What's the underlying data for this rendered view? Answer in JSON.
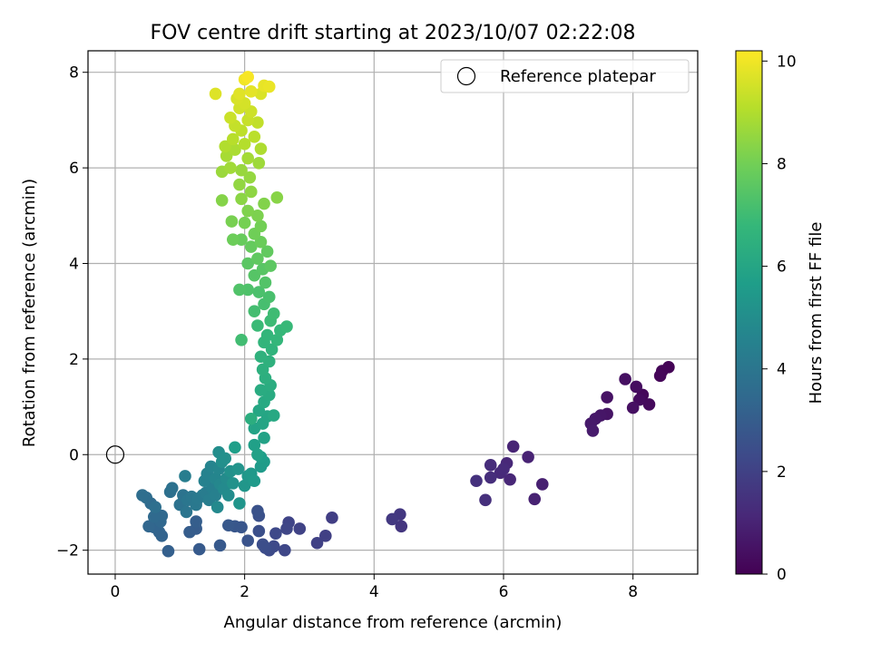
{
  "chart_data": {
    "type": "scatter",
    "title": "FOV centre drift starting at 2023/10/07 02:22:08",
    "xlabel": "Angular distance from reference (arcmin)",
    "ylabel": "Rotation from reference (arcmin)",
    "xlim": [
      -0.42,
      9.0
    ],
    "ylim": [
      -2.5,
      8.45
    ],
    "xticks": [
      0,
      2,
      4,
      6,
      8
    ],
    "yticks": [
      -2,
      0,
      2,
      4,
      6,
      8
    ],
    "xtick_labels": [
      "0",
      "2",
      "4",
      "6",
      "8"
    ],
    "ytick_labels": [
      "−2",
      "0",
      "2",
      "4",
      "6",
      "8"
    ],
    "grid": true,
    "legend": {
      "label": "Reference platepar",
      "location": "upper-right"
    },
    "reference_point": {
      "x": 0,
      "y": 0
    },
    "colorbar": {
      "label": "Hours from first FF file",
      "colormap": "viridis",
      "range": [
        0,
        10.2
      ],
      "ticks": [
        0,
        2,
        4,
        6,
        8,
        10
      ],
      "tick_labels": [
        "0",
        "2",
        "4",
        "6",
        "8",
        "10"
      ]
    },
    "colormap_stops": [
      "#440154",
      "#482878",
      "#3e4989",
      "#31688e",
      "#26828e",
      "#1f9e89",
      "#35b779",
      "#6ece58",
      "#b5de2b",
      "#fde725"
    ],
    "points": [
      {
        "x": 8.55,
        "y": 1.83,
        "h": 0.05
      },
      {
        "x": 8.45,
        "y": 1.75,
        "h": 0.1
      },
      {
        "x": 8.42,
        "y": 1.65,
        "h": 0.15
      },
      {
        "x": 8.15,
        "y": 1.25,
        "h": 0.2
      },
      {
        "x": 8.25,
        "y": 1.05,
        "h": 0.25
      },
      {
        "x": 8.1,
        "y": 1.15,
        "h": 0.3
      },
      {
        "x": 8.05,
        "y": 1.42,
        "h": 0.35
      },
      {
        "x": 7.88,
        "y": 1.58,
        "h": 0.4
      },
      {
        "x": 8.0,
        "y": 0.98,
        "h": 0.45
      },
      {
        "x": 7.6,
        "y": 1.2,
        "h": 0.5
      },
      {
        "x": 7.6,
        "y": 0.85,
        "h": 0.55
      },
      {
        "x": 7.5,
        "y": 0.82,
        "h": 0.6
      },
      {
        "x": 7.42,
        "y": 0.75,
        "h": 0.65
      },
      {
        "x": 7.35,
        "y": 0.65,
        "h": 0.7
      },
      {
        "x": 7.38,
        "y": 0.5,
        "h": 0.75
      },
      {
        "x": 6.6,
        "y": -0.62,
        "h": 0.9
      },
      {
        "x": 6.48,
        "y": -0.93,
        "h": 0.95
      },
      {
        "x": 6.38,
        "y": -0.05,
        "h": 1.0
      },
      {
        "x": 6.15,
        "y": 0.17,
        "h": 1.05
      },
      {
        "x": 6.1,
        "y": -0.52,
        "h": 1.1
      },
      {
        "x": 6.05,
        "y": -0.18,
        "h": 1.15
      },
      {
        "x": 5.95,
        "y": -0.38,
        "h": 1.2
      },
      {
        "x": 6.0,
        "y": -0.3,
        "h": 1.25
      },
      {
        "x": 5.8,
        "y": -0.22,
        "h": 1.3
      },
      {
        "x": 5.8,
        "y": -0.48,
        "h": 1.35
      },
      {
        "x": 5.72,
        "y": -0.95,
        "h": 1.4
      },
      {
        "x": 5.58,
        "y": -0.55,
        "h": 1.45
      },
      {
        "x": 4.42,
        "y": -1.5,
        "h": 1.6
      },
      {
        "x": 4.4,
        "y": -1.25,
        "h": 1.65
      },
      {
        "x": 4.28,
        "y": -1.35,
        "h": 1.7
      },
      {
        "x": 3.35,
        "y": -1.32,
        "h": 1.9
      },
      {
        "x": 3.25,
        "y": -1.7,
        "h": 1.95
      },
      {
        "x": 3.12,
        "y": -1.85,
        "h": 2.0
      },
      {
        "x": 2.85,
        "y": -1.55,
        "h": 2.05
      },
      {
        "x": 2.68,
        "y": -1.42,
        "h": 2.1
      },
      {
        "x": 2.65,
        "y": -1.55,
        "h": 2.15
      },
      {
        "x": 2.62,
        "y": -2.0,
        "h": 2.2
      },
      {
        "x": 2.48,
        "y": -1.65,
        "h": 2.25
      },
      {
        "x": 2.45,
        "y": -1.92,
        "h": 2.3
      },
      {
        "x": 2.38,
        "y": -2.0,
        "h": 2.35
      },
      {
        "x": 2.32,
        "y": -1.95,
        "h": 2.4
      },
      {
        "x": 2.28,
        "y": -1.88,
        "h": 2.45
      },
      {
        "x": 2.22,
        "y": -1.6,
        "h": 2.5
      },
      {
        "x": 2.22,
        "y": -1.28,
        "h": 2.55
      },
      {
        "x": 2.2,
        "y": -1.18,
        "h": 2.6
      },
      {
        "x": 2.05,
        "y": -1.8,
        "h": 2.65
      },
      {
        "x": 1.95,
        "y": -1.52,
        "h": 2.7
      },
      {
        "x": 1.85,
        "y": -1.5,
        "h": 2.75
      },
      {
        "x": 1.75,
        "y": -1.48,
        "h": 2.8
      },
      {
        "x": 1.62,
        "y": -1.9,
        "h": 2.85
      },
      {
        "x": 1.3,
        "y": -1.98,
        "h": 2.9
      },
      {
        "x": 1.25,
        "y": -1.55,
        "h": 2.95
      },
      {
        "x": 1.15,
        "y": -1.62,
        "h": 3.0
      },
      {
        "x": 1.25,
        "y": -1.4,
        "h": 3.05
      },
      {
        "x": 0.82,
        "y": -2.02,
        "h": 3.1
      },
      {
        "x": 0.72,
        "y": -1.7,
        "h": 3.2
      },
      {
        "x": 0.68,
        "y": -1.62,
        "h": 3.25
      },
      {
        "x": 0.6,
        "y": -1.52,
        "h": 3.3
      },
      {
        "x": 0.52,
        "y": -1.5,
        "h": 3.35
      },
      {
        "x": 0.7,
        "y": -1.4,
        "h": 3.4
      },
      {
        "x": 0.72,
        "y": -1.28,
        "h": 3.45
      },
      {
        "x": 0.6,
        "y": -1.3,
        "h": 3.5
      },
      {
        "x": 0.55,
        "y": -1.02,
        "h": 3.55
      },
      {
        "x": 0.48,
        "y": -0.9,
        "h": 3.6
      },
      {
        "x": 0.42,
        "y": -0.85,
        "h": 3.65
      },
      {
        "x": 0.62,
        "y": -1.1,
        "h": 3.7
      },
      {
        "x": 0.85,
        "y": -0.78,
        "h": 3.75
      },
      {
        "x": 0.88,
        "y": -0.7,
        "h": 3.8
      },
      {
        "x": 1.0,
        "y": -1.05,
        "h": 3.85
      },
      {
        "x": 1.05,
        "y": -0.85,
        "h": 3.9
      },
      {
        "x": 1.1,
        "y": -1.2,
        "h": 3.95
      },
      {
        "x": 1.12,
        "y": -0.95,
        "h": 4.0
      },
      {
        "x": 1.18,
        "y": -0.88,
        "h": 4.05
      },
      {
        "x": 1.25,
        "y": -1.05,
        "h": 4.1
      },
      {
        "x": 1.28,
        "y": -0.92,
        "h": 4.15
      },
      {
        "x": 1.35,
        "y": -0.85,
        "h": 4.2
      },
      {
        "x": 1.4,
        "y": -0.8,
        "h": 4.25
      },
      {
        "x": 1.08,
        "y": -0.45,
        "h": 4.3
      },
      {
        "x": 1.45,
        "y": -0.95,
        "h": 4.35
      },
      {
        "x": 1.5,
        "y": -0.7,
        "h": 4.4
      },
      {
        "x": 1.55,
        "y": -0.85,
        "h": 4.45
      },
      {
        "x": 1.38,
        "y": -0.55,
        "h": 4.5
      },
      {
        "x": 1.42,
        "y": -0.4,
        "h": 4.55
      },
      {
        "x": 1.48,
        "y": -0.25,
        "h": 4.6
      },
      {
        "x": 1.55,
        "y": -0.5,
        "h": 4.65
      },
      {
        "x": 1.6,
        "y": -0.3,
        "h": 4.7
      },
      {
        "x": 1.62,
        "y": -0.62,
        "h": 4.75
      },
      {
        "x": 1.58,
        "y": -1.1,
        "h": 4.8
      },
      {
        "x": 1.68,
        "y": -0.72,
        "h": 4.85
      },
      {
        "x": 1.72,
        "y": -0.5,
        "h": 4.9
      },
      {
        "x": 1.75,
        "y": -0.85,
        "h": 4.95
      },
      {
        "x": 1.6,
        "y": 0.05,
        "h": 5.0
      },
      {
        "x": 1.65,
        "y": -0.15,
        "h": 5.05
      },
      {
        "x": 1.7,
        "y": -0.08,
        "h": 5.1
      },
      {
        "x": 1.78,
        "y": -0.35,
        "h": 5.15
      },
      {
        "x": 1.82,
        "y": -0.6,
        "h": 5.2
      },
      {
        "x": 1.9,
        "y": -0.3,
        "h": 5.25
      },
      {
        "x": 1.92,
        "y": -1.02,
        "h": 5.3
      },
      {
        "x": 2.0,
        "y": -0.65,
        "h": 5.35
      },
      {
        "x": 2.05,
        "y": -0.45,
        "h": 5.4
      },
      {
        "x": 2.1,
        "y": -0.4,
        "h": 5.45
      },
      {
        "x": 2.15,
        "y": -0.55,
        "h": 5.5
      },
      {
        "x": 2.25,
        "y": -0.25,
        "h": 5.55
      },
      {
        "x": 2.3,
        "y": -0.15,
        "h": 5.6
      },
      {
        "x": 2.25,
        "y": -0.05,
        "h": 5.65
      },
      {
        "x": 1.85,
        "y": 0.15,
        "h": 5.7
      },
      {
        "x": 2.15,
        "y": 0.2,
        "h": 5.75
      },
      {
        "x": 2.2,
        "y": 0.0,
        "h": 5.8
      },
      {
        "x": 2.3,
        "y": 0.35,
        "h": 5.85
      },
      {
        "x": 2.15,
        "y": 0.55,
        "h": 5.9
      },
      {
        "x": 2.28,
        "y": 0.65,
        "h": 5.95
      },
      {
        "x": 2.35,
        "y": 0.8,
        "h": 6.0
      },
      {
        "x": 2.22,
        "y": 0.92,
        "h": 6.05
      },
      {
        "x": 2.45,
        "y": 0.82,
        "h": 6.1
      },
      {
        "x": 2.3,
        "y": 1.1,
        "h": 6.15
      },
      {
        "x": 2.38,
        "y": 1.25,
        "h": 6.2
      },
      {
        "x": 2.25,
        "y": 1.35,
        "h": 6.25
      },
      {
        "x": 2.4,
        "y": 1.45,
        "h": 6.3
      },
      {
        "x": 2.1,
        "y": 0.75,
        "h": 6.35
      },
      {
        "x": 2.32,
        "y": 1.6,
        "h": 6.4
      },
      {
        "x": 2.28,
        "y": 1.78,
        "h": 6.45
      },
      {
        "x": 2.38,
        "y": 1.95,
        "h": 6.5
      },
      {
        "x": 2.25,
        "y": 2.05,
        "h": 6.55
      },
      {
        "x": 2.42,
        "y": 2.2,
        "h": 6.6
      },
      {
        "x": 2.3,
        "y": 2.35,
        "h": 6.65
      },
      {
        "x": 2.35,
        "y": 2.5,
        "h": 6.7
      },
      {
        "x": 2.5,
        "y": 2.4,
        "h": 6.75
      },
      {
        "x": 2.55,
        "y": 2.6,
        "h": 6.8
      },
      {
        "x": 2.65,
        "y": 2.68,
        "h": 6.85
      },
      {
        "x": 2.2,
        "y": 2.7,
        "h": 6.9
      },
      {
        "x": 2.4,
        "y": 2.8,
        "h": 6.95
      },
      {
        "x": 2.45,
        "y": 2.95,
        "h": 7.0
      },
      {
        "x": 1.95,
        "y": 2.4,
        "h": 7.05
      },
      {
        "x": 2.15,
        "y": 3.0,
        "h": 7.1
      },
      {
        "x": 2.3,
        "y": 3.15,
        "h": 7.15
      },
      {
        "x": 2.38,
        "y": 3.3,
        "h": 7.2
      },
      {
        "x": 2.22,
        "y": 3.4,
        "h": 7.25
      },
      {
        "x": 2.05,
        "y": 3.45,
        "h": 7.3
      },
      {
        "x": 1.92,
        "y": 3.45,
        "h": 7.35
      },
      {
        "x": 2.32,
        "y": 3.6,
        "h": 7.4
      },
      {
        "x": 2.15,
        "y": 3.75,
        "h": 7.45
      },
      {
        "x": 2.28,
        "y": 3.88,
        "h": 7.5
      },
      {
        "x": 2.05,
        "y": 4.0,
        "h": 7.55
      },
      {
        "x": 2.4,
        "y": 3.95,
        "h": 7.6
      },
      {
        "x": 2.2,
        "y": 4.1,
        "h": 7.65
      },
      {
        "x": 2.35,
        "y": 4.25,
        "h": 7.7
      },
      {
        "x": 2.1,
        "y": 4.35,
        "h": 7.75
      },
      {
        "x": 1.95,
        "y": 4.5,
        "h": 7.8
      },
      {
        "x": 2.25,
        "y": 4.45,
        "h": 7.85
      },
      {
        "x": 1.82,
        "y": 4.5,
        "h": 7.9
      },
      {
        "x": 2.15,
        "y": 4.62,
        "h": 7.95
      },
      {
        "x": 2.25,
        "y": 4.78,
        "h": 8.0
      },
      {
        "x": 2.0,
        "y": 4.85,
        "h": 8.05
      },
      {
        "x": 1.8,
        "y": 4.88,
        "h": 8.1
      },
      {
        "x": 2.2,
        "y": 5.0,
        "h": 8.15
      },
      {
        "x": 2.05,
        "y": 5.1,
        "h": 8.2
      },
      {
        "x": 2.3,
        "y": 5.25,
        "h": 8.25
      },
      {
        "x": 1.65,
        "y": 5.32,
        "h": 8.3
      },
      {
        "x": 2.5,
        "y": 5.38,
        "h": 8.35
      },
      {
        "x": 1.95,
        "y": 5.35,
        "h": 8.4
      },
      {
        "x": 2.1,
        "y": 5.5,
        "h": 8.45
      },
      {
        "x": 1.92,
        "y": 5.65,
        "h": 8.5
      },
      {
        "x": 2.08,
        "y": 5.8,
        "h": 8.55
      },
      {
        "x": 1.95,
        "y": 5.95,
        "h": 8.6
      },
      {
        "x": 1.65,
        "y": 5.92,
        "h": 8.65
      },
      {
        "x": 2.22,
        "y": 6.1,
        "h": 8.7
      },
      {
        "x": 1.78,
        "y": 6.0,
        "h": 8.75
      },
      {
        "x": 2.05,
        "y": 6.2,
        "h": 8.8
      },
      {
        "x": 1.72,
        "y": 6.25,
        "h": 8.85
      },
      {
        "x": 1.85,
        "y": 6.38,
        "h": 8.9
      },
      {
        "x": 2.25,
        "y": 6.4,
        "h": 8.95
      },
      {
        "x": 1.7,
        "y": 6.45,
        "h": 9.0
      },
      {
        "x": 2.0,
        "y": 6.5,
        "h": 9.05
      },
      {
        "x": 1.82,
        "y": 6.6,
        "h": 9.1
      },
      {
        "x": 2.15,
        "y": 6.65,
        "h": 9.15
      },
      {
        "x": 1.95,
        "y": 6.78,
        "h": 9.2
      },
      {
        "x": 2.2,
        "y": 6.95,
        "h": 9.25
      },
      {
        "x": 1.85,
        "y": 6.88,
        "h": 9.3
      },
      {
        "x": 2.05,
        "y": 7.0,
        "h": 9.35
      },
      {
        "x": 1.78,
        "y": 7.05,
        "h": 9.4
      },
      {
        "x": 2.1,
        "y": 7.18,
        "h": 9.45
      },
      {
        "x": 1.92,
        "y": 7.25,
        "h": 9.5
      },
      {
        "x": 2.0,
        "y": 7.35,
        "h": 9.55
      },
      {
        "x": 1.88,
        "y": 7.45,
        "h": 9.6
      },
      {
        "x": 2.25,
        "y": 7.55,
        "h": 9.65
      },
      {
        "x": 1.55,
        "y": 7.55,
        "h": 9.7
      },
      {
        "x": 1.92,
        "y": 7.55,
        "h": 9.75
      },
      {
        "x": 2.1,
        "y": 7.6,
        "h": 9.8
      },
      {
        "x": 2.3,
        "y": 7.72,
        "h": 9.85
      },
      {
        "x": 2.38,
        "y": 7.7,
        "h": 9.9
      },
      {
        "x": 2.0,
        "y": 7.85,
        "h": 10.0
      },
      {
        "x": 2.05,
        "y": 7.9,
        "h": 10.1
      }
    ]
  }
}
